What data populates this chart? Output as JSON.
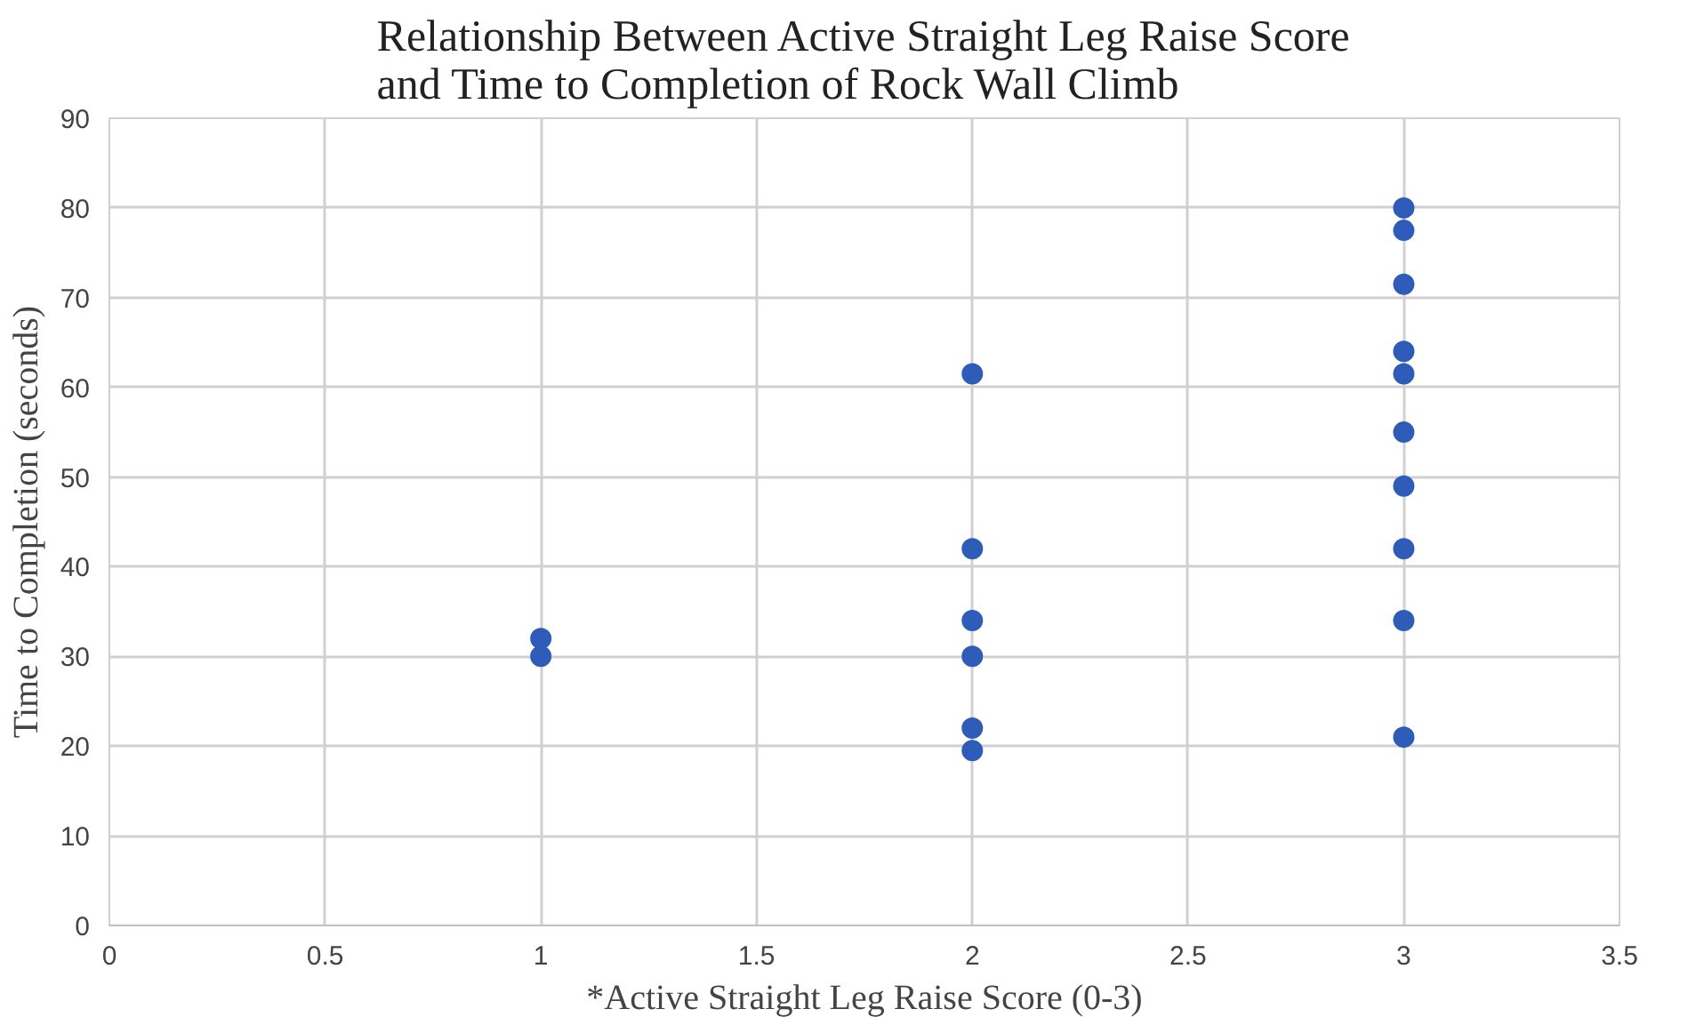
{
  "chart_data": {
    "type": "scatter",
    "title": "Relationship Between Active Straight Leg Raise Score\nand Time to Completion of Rock Wall Climb",
    "xlabel": "*Active Straight Leg Raise Score (0-3)",
    "ylabel": "Time to Completion (seconds)",
    "x": [
      1,
      1,
      2,
      2,
      2,
      2,
      2,
      2,
      3,
      3,
      3,
      3,
      3,
      3,
      3,
      3,
      3,
      3
    ],
    "series": [
      {
        "color": "#2e5cb8",
        "values": [
          32,
          30,
          61.5,
          42,
          34,
          30,
          22,
          19.5,
          80,
          77.5,
          71.5,
          64,
          61.5,
          55,
          49,
          42,
          34,
          21
        ]
      }
    ],
    "xlim": [
      0,
      3.5
    ],
    "xticks": [
      0,
      0.5,
      1,
      1.5,
      2,
      2.5,
      3,
      3.5
    ],
    "ylim": [
      0,
      90
    ],
    "yticks": [
      0,
      10,
      20,
      30,
      40,
      50,
      60,
      70,
      80,
      90
    ],
    "grid": true,
    "marker": "circle"
  }
}
